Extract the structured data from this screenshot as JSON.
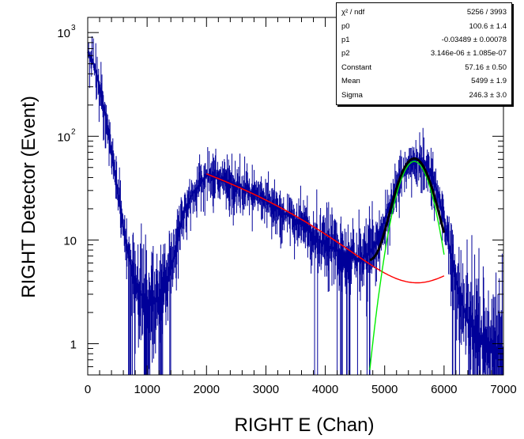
{
  "chart_data": {
    "type": "line",
    "xlabel": "RIGHT E (Chan)",
    "ylabel": "RIGHT Detector (Event)",
    "xlim": [
      0,
      7000
    ],
    "ylim": [
      0.5,
      1400
    ],
    "y_scale": "log",
    "grid": false,
    "x_ticks": [
      "0",
      "1000",
      "2000",
      "3000",
      "4000",
      "5000",
      "6000",
      "7000"
    ],
    "y_ticks": [
      {
        "value": 1,
        "base": "1",
        "exp": ""
      },
      {
        "value": 10,
        "base": "10",
        "exp": ""
      },
      {
        "value": 100,
        "base": "10",
        "exp": "2"
      },
      {
        "value": 1000,
        "base": "10",
        "exp": "3"
      }
    ],
    "stats_box": [
      {
        "name": "χ² / ndf",
        "value": "5256 / 3993"
      },
      {
        "name": "p0",
        "value": "100.6  ± 1.4"
      },
      {
        "name": "p1",
        "value": "-0.03489  ± 0.00078"
      },
      {
        "name": "p2",
        "value": "3.146e-06  ± 1.085e-07"
      },
      {
        "name": "Constant",
        "value": "57.16  ± 0.50"
      },
      {
        "name": "Mean",
        "value": "5499  ± 1.9"
      },
      {
        "name": "Sigma",
        "value": "246.3  ± 3.0"
      }
    ],
    "series": [
      {
        "role": "histogram",
        "color": "#000099",
        "x": [
          0,
          100,
          200,
          300,
          400,
          500,
          600,
          700,
          800,
          900,
          1000,
          1100,
          1200,
          1300,
          1400,
          1500,
          1600,
          1700,
          1800,
          1900,
          2000,
          2200,
          2400,
          2600,
          2800,
          3000,
          3200,
          3400,
          3600,
          3800,
          4000,
          4200,
          4400,
          4600,
          4800,
          4900,
          5000,
          5100,
          5200,
          5300,
          5400,
          5500,
          5600,
          5700,
          5800,
          5900,
          6000,
          6100,
          6200,
          6300,
          6400,
          6600,
          6800,
          7000
        ],
        "y": [
          650,
          500,
          300,
          160,
          70,
          30,
          13,
          6.5,
          3.8,
          3,
          2.5,
          2.6,
          2.8,
          3.5,
          5,
          9,
          17,
          24,
          30,
          35,
          42,
          40,
          36,
          32,
          28,
          24,
          20,
          17,
          14,
          11,
          9,
          8,
          7,
          6.5,
          8,
          11,
          16,
          23,
          32,
          43,
          52,
          58,
          60,
          55,
          42,
          28,
          15,
          8,
          4,
          2.5,
          1.6,
          1.2,
          1,
          0.8
        ]
      },
      {
        "role": "background-fit",
        "color": "#ff0000",
        "x_range": [
          2000,
          6000
        ],
        "p0": 100.6,
        "p1": -0.03489,
        "p2": 3.146e-06
      },
      {
        "role": "gaussian-fit",
        "color": "#00ee00",
        "x_range": [
          4700,
          6000
        ],
        "constant": 57.16,
        "mean": 5499,
        "sigma": 246.3
      },
      {
        "role": "total-fit",
        "color": "#000000",
        "x_range": [
          4750,
          6000
        ]
      }
    ]
  }
}
